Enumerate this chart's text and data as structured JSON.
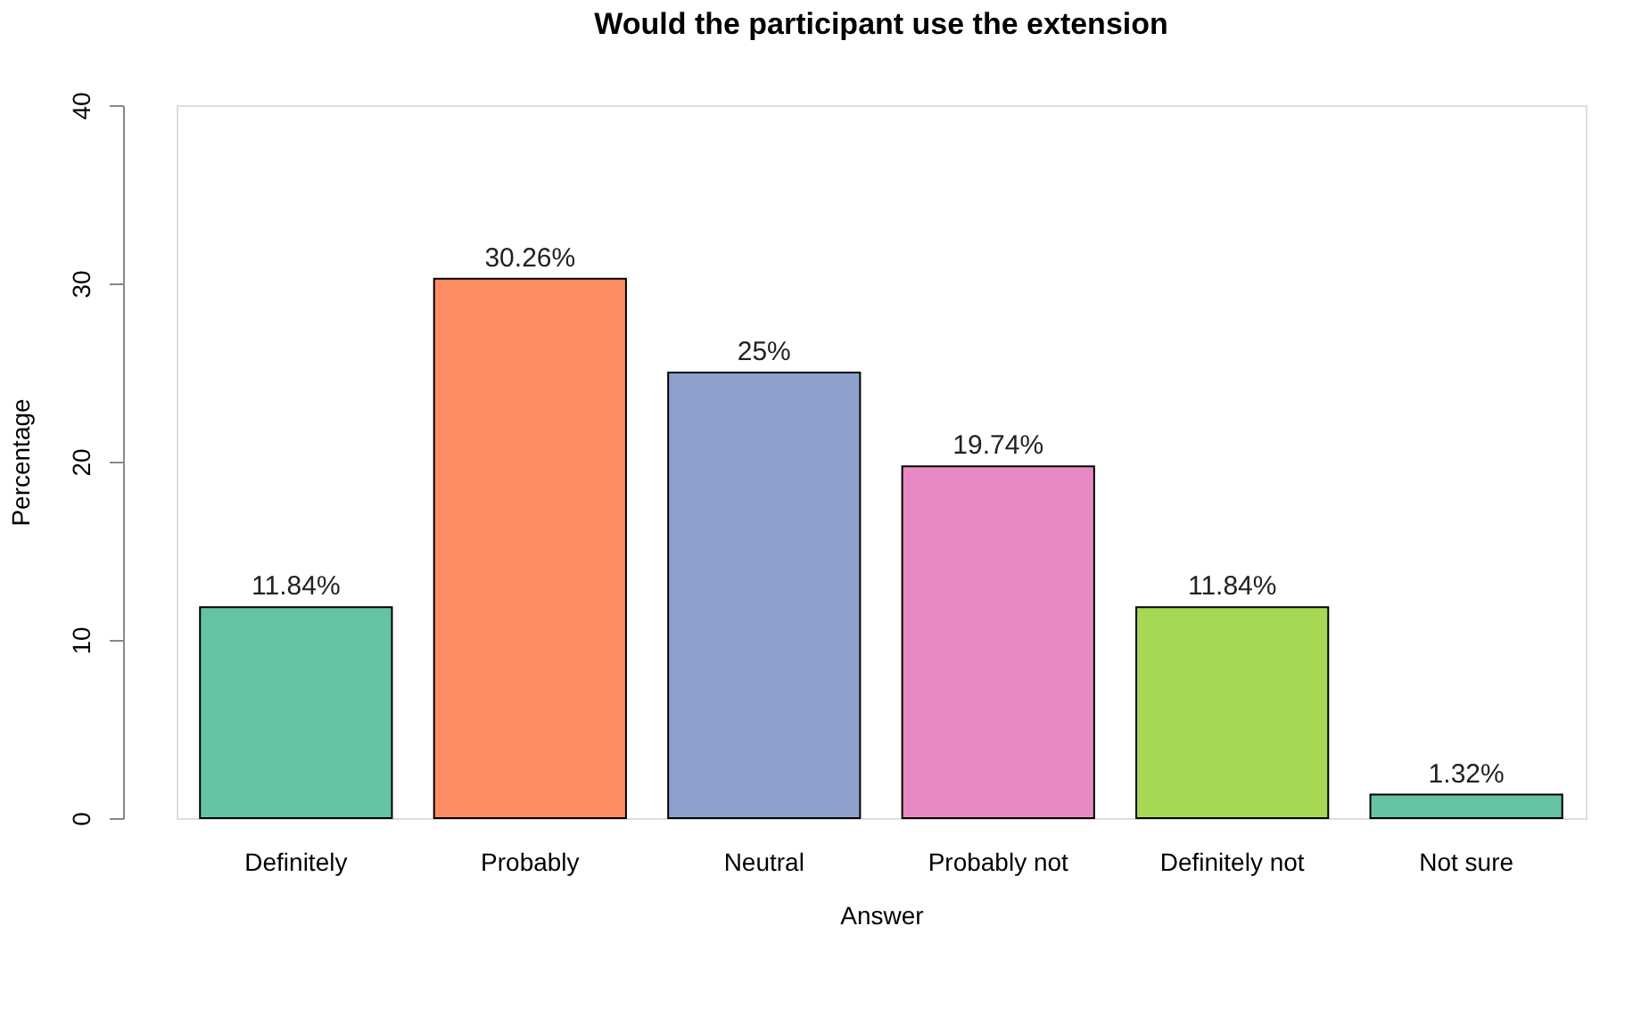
{
  "chart_data": {
    "type": "bar",
    "title": "Would the participant use the extension",
    "xlabel": "Answer",
    "ylabel": "Percentage",
    "categories": [
      "Definitely",
      "Probably",
      "Neutral",
      "Probably not",
      "Definitely not",
      "Not sure"
    ],
    "values": [
      11.84,
      30.26,
      25,
      19.74,
      11.84,
      1.32
    ],
    "colors": [
      "#66c2a5",
      "#fc8d62",
      "#8da0cb",
      "#e78ac3",
      "#a6d854",
      "#66c2a5"
    ],
    "value_labels": [
      "11.84%",
      "30.26%",
      "25%",
      "19.74%",
      "11.84%",
      "1.32%"
    ],
    "ylim": [
      0,
      40
    ],
    "yticks": [
      0,
      10,
      20,
      30,
      40
    ],
    "grid": false
  }
}
